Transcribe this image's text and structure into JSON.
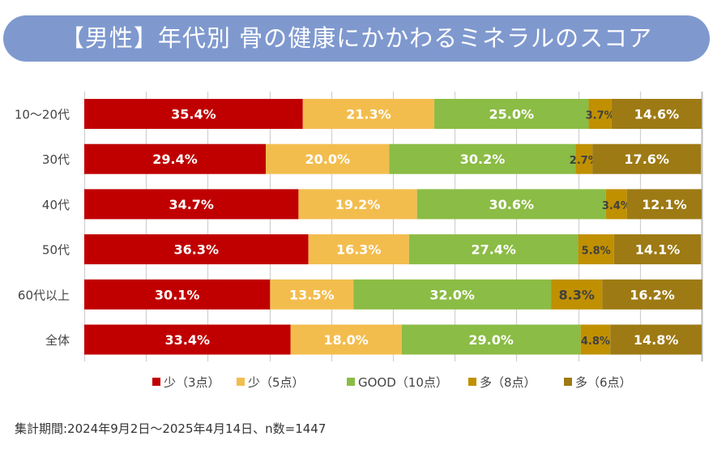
{
  "title": "【男性】年代別 骨の健康にかかわるミネラルのスコア",
  "footnote": "集計期間:2024年9月2日〜2025年4月14日、n数=1447",
  "chart_data": {
    "type": "bar",
    "orientation": "horizontal",
    "stacked": "percent",
    "xlim": [
      0,
      100
    ],
    "grid": true,
    "legend_position": "bottom",
    "categories": [
      "10〜20代",
      "30代",
      "40代",
      "50代",
      "60代以上",
      "全体"
    ],
    "series": [
      {
        "name": "少（3点）",
        "color": "#c00000",
        "label_color": "#ffffff",
        "values": [
          35.4,
          29.4,
          34.7,
          36.3,
          30.1,
          33.4
        ]
      },
      {
        "name": "少（5点）",
        "color": "#f3bd4e",
        "label_color": "#ffffff",
        "values": [
          21.3,
          20.0,
          19.2,
          16.3,
          13.5,
          18.0
        ]
      },
      {
        "name": "GOOD（10点）",
        "color": "#8bbc45",
        "label_color": "#ffffff",
        "values": [
          25.0,
          30.2,
          30.6,
          27.4,
          32.0,
          29.0
        ]
      },
      {
        "name": "多（8点）",
        "color": "#c09000",
        "label_color": "#404040",
        "values": [
          3.7,
          2.7,
          3.4,
          5.8,
          8.3,
          4.8
        ]
      },
      {
        "name": "多（6点）",
        "color": "#9d7a14",
        "label_color": "#ffffff",
        "values": [
          14.6,
          17.6,
          12.1,
          14.1,
          16.2,
          14.8
        ]
      }
    ]
  }
}
